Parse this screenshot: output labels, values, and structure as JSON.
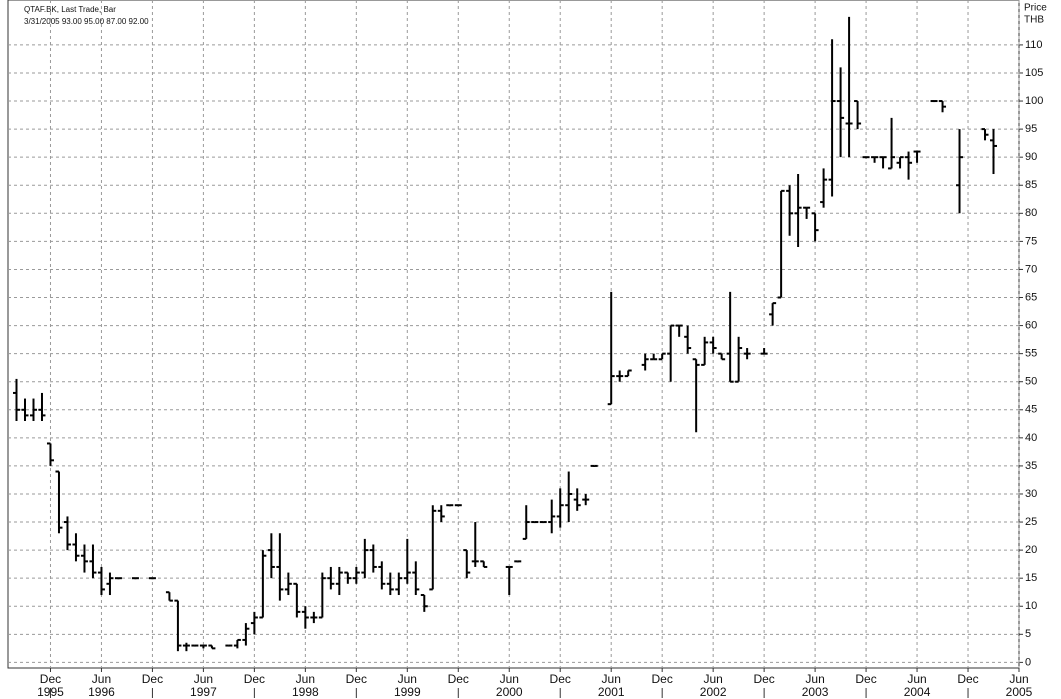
{
  "chart_data": {
    "type": "ohlc",
    "title": "QTAF.BK, Last Trade, Bar",
    "subtitle": "3/31/2005 93.00 95.00 87.00 92.00",
    "y_label_lines": [
      "Price",
      "THB"
    ],
    "color": "#000000",
    "grid": true,
    "categories": [
      "1995-08",
      "1995-09",
      "1995-10",
      "1995-11",
      "1995-12",
      "1996-01",
      "1996-02",
      "1996-03",
      "1996-04",
      "1996-05",
      "1996-06",
      "1996-07",
      "1996-08",
      "1996-09",
      "1996-10",
      "1996-11",
      "1996-12",
      "1997-01",
      "1997-02",
      "1997-03",
      "1997-04",
      "1997-05",
      "1997-06",
      "1997-07",
      "1997-08",
      "1997-09",
      "1997-10",
      "1997-11",
      "1997-12",
      "1998-01",
      "1998-02",
      "1998-03",
      "1998-04",
      "1998-05",
      "1998-06",
      "1998-07",
      "1998-08",
      "1998-09",
      "1998-10",
      "1998-11",
      "1998-12",
      "1999-01",
      "1999-02",
      "1999-03",
      "1999-04",
      "1999-05",
      "1999-06",
      "1999-07",
      "1999-08",
      "1999-09",
      "1999-10",
      "1999-11",
      "1999-12",
      "2000-01",
      "2000-02",
      "2000-03",
      "2000-04",
      "2000-05",
      "2000-06",
      "2000-07",
      "2000-08",
      "2000-09",
      "2000-10",
      "2000-11",
      "2000-12",
      "2001-01",
      "2001-02",
      "2001-03",
      "2001-04",
      "2001-05",
      "2001-06",
      "2001-07",
      "2001-08",
      "2001-09",
      "2001-10",
      "2001-11",
      "2001-12",
      "2002-01",
      "2002-02",
      "2002-03",
      "2002-04",
      "2002-05",
      "2002-06",
      "2002-07",
      "2002-08",
      "2002-09",
      "2002-10",
      "2002-11",
      "2002-12",
      "2003-01",
      "2003-02",
      "2003-03",
      "2003-04",
      "2003-05",
      "2003-06",
      "2003-07",
      "2003-08",
      "2003-09",
      "2003-10",
      "2003-11",
      "2003-12",
      "2004-01",
      "2004-02",
      "2004-03",
      "2004-04",
      "2004-05",
      "2004-06",
      "2004-07",
      "2004-08",
      "2004-09",
      "2004-10",
      "2004-11",
      "2004-12",
      "2005-01",
      "2005-02",
      "2005-03"
    ],
    "open": [
      48,
      45,
      44,
      45,
      39,
      34,
      25,
      21,
      19,
      18,
      16,
      14,
      15,
      null,
      15,
      null,
      15,
      null,
      12.5,
      11,
      3,
      3,
      3,
      3,
      null,
      3,
      3,
      4,
      7,
      8,
      20,
      17,
      13,
      14,
      9,
      8,
      8,
      15,
      14,
      16,
      15,
      16,
      20,
      17,
      14,
      13,
      15,
      16,
      12,
      13,
      27,
      28,
      28,
      20,
      18,
      18,
      null,
      null,
      17,
      18,
      22,
      25,
      25,
      25,
      26,
      28,
      29,
      29,
      35,
      null,
      46,
      51,
      51,
      null,
      53,
      54,
      54,
      55,
      60,
      58,
      54,
      53,
      57,
      55,
      55,
      50,
      55,
      null,
      55,
      62,
      65,
      84,
      80,
      81,
      80,
      82,
      86,
      100,
      96,
      100,
      90,
      90,
      90,
      88,
      89,
      90,
      91,
      null,
      100,
      100,
      null,
      85,
      null,
      null,
      95,
      93
    ],
    "high": [
      50.5,
      47,
      47,
      48,
      39,
      34,
      26,
      23,
      21,
      21,
      17,
      16,
      15,
      null,
      15,
      null,
      15,
      null,
      12.5,
      11,
      3.5,
      3,
      3,
      3,
      null,
      3,
      4,
      7,
      9,
      20,
      23,
      23,
      16,
      14,
      10,
      9,
      16,
      17,
      17,
      16,
      17,
      22,
      21,
      18,
      16,
      16,
      22,
      18,
      12,
      28,
      28,
      28,
      28,
      20,
      25,
      18,
      null,
      null,
      17,
      18,
      28,
      25,
      25,
      29,
      31,
      34,
      31,
      30,
      35,
      null,
      66,
      52,
      52,
      null,
      55,
      55,
      55,
      60,
      60,
      60,
      54,
      58,
      58,
      55,
      66,
      58,
      56,
      null,
      56,
      64,
      84,
      85,
      87,
      81,
      80,
      88,
      111,
      106,
      115,
      100,
      90,
      90,
      90,
      97,
      90,
      91,
      91,
      null,
      100,
      100,
      null,
      95,
      null,
      null,
      95,
      95
    ],
    "low": [
      43,
      43,
      43,
      43,
      35,
      23,
      20,
      18,
      16,
      15,
      12,
      12,
      15,
      null,
      15,
      null,
      15,
      null,
      11,
      2,
      2,
      3,
      2.5,
      2.5,
      null,
      3,
      2.5,
      3,
      5,
      8,
      15,
      11,
      12,
      8,
      6,
      7,
      8,
      13,
      12,
      14,
      14,
      15,
      16,
      13,
      12,
      12,
      14,
      12,
      9,
      13,
      25,
      28,
      28,
      15,
      17,
      17,
      null,
      null,
      12,
      18,
      22,
      25,
      25,
      23,
      24,
      25,
      27,
      28,
      35,
      null,
      46,
      50,
      51,
      null,
      52,
      54,
      54,
      50,
      58,
      55,
      41,
      53,
      55,
      54,
      50,
      50,
      54,
      null,
      55,
      60,
      65,
      76,
      74,
      79,
      75,
      81,
      83,
      90,
      90,
      95,
      90,
      89,
      88,
      88,
      88,
      86,
      89,
      null,
      100,
      98,
      null,
      80,
      null,
      null,
      93,
      87
    ],
    "close": [
      45,
      44,
      45,
      44,
      36,
      24,
      21,
      19,
      18,
      16,
      13,
      15,
      15,
      null,
      15,
      null,
      15,
      null,
      11,
      3,
      3,
      3,
      3,
      2.5,
      null,
      3,
      4,
      6,
      8,
      19,
      17,
      13,
      14,
      9,
      8,
      8,
      15,
      14,
      16,
      15,
      16,
      20,
      17,
      14,
      13,
      15,
      16,
      13,
      10,
      27,
      26,
      28,
      28,
      16,
      18,
      17,
      null,
      null,
      17,
      18,
      25,
      25,
      25,
      26,
      28,
      30,
      28,
      29,
      35,
      null,
      51,
      51,
      52,
      null,
      54,
      54,
      55,
      60,
      60,
      56,
      53,
      57,
      56,
      54,
      50,
      56,
      55,
      null,
      55,
      64,
      84,
      80,
      81,
      81,
      77,
      86,
      100,
      97,
      96,
      96,
      90,
      90,
      90,
      90,
      90,
      89,
      91,
      null,
      100,
      99,
      null,
      90,
      null,
      null,
      94,
      92
    ],
    "xlim": [
      "1995-07",
      "2005-06"
    ],
    "xticks": [
      {
        "value": "1995-12",
        "label": "Dec"
      },
      {
        "value": "1996-06",
        "label": "Jun"
      },
      {
        "value": "1996-12",
        "label": "Dec"
      },
      {
        "value": "1997-06",
        "label": "Jun"
      },
      {
        "value": "1997-12",
        "label": "Dec"
      },
      {
        "value": "1998-06",
        "label": "Jun"
      },
      {
        "value": "1998-12",
        "label": "Dec"
      },
      {
        "value": "1999-06",
        "label": "Jun"
      },
      {
        "value": "1999-12",
        "label": "Dec"
      },
      {
        "value": "2000-06",
        "label": "Jun"
      },
      {
        "value": "2000-12",
        "label": "Dec"
      },
      {
        "value": "2001-06",
        "label": "Jun"
      },
      {
        "value": "2001-12",
        "label": "Dec"
      },
      {
        "value": "2002-06",
        "label": "Jun"
      },
      {
        "value": "2002-12",
        "label": "Dec"
      },
      {
        "value": "2003-06",
        "label": "Jun"
      },
      {
        "value": "2003-12",
        "label": "Dec"
      },
      {
        "value": "2004-06",
        "label": "Jun"
      },
      {
        "value": "2004-12",
        "label": "Dec"
      },
      {
        "value": "2005-06",
        "label": "Jun"
      }
    ],
    "x_year_labels": [
      {
        "value": "1995-12",
        "label": "1995"
      },
      {
        "value": "1996-06",
        "label": "1996"
      },
      {
        "value": "1997-06",
        "label": "1997"
      },
      {
        "value": "1998-06",
        "label": "1998"
      },
      {
        "value": "1999-06",
        "label": "1999"
      },
      {
        "value": "2000-06",
        "label": "2000"
      },
      {
        "value": "2001-06",
        "label": "2001"
      },
      {
        "value": "2002-06",
        "label": "2002"
      },
      {
        "value": "2003-06",
        "label": "2003"
      },
      {
        "value": "2004-06",
        "label": "2004"
      },
      {
        "value": "2005-06",
        "label": "2005"
      }
    ],
    "ylim": [
      -1,
      118
    ],
    "yticks": [
      0,
      5,
      10,
      15,
      20,
      25,
      30,
      35,
      40,
      45,
      50,
      55,
      60,
      65,
      70,
      75,
      80,
      85,
      90,
      95,
      100,
      105,
      110
    ]
  }
}
